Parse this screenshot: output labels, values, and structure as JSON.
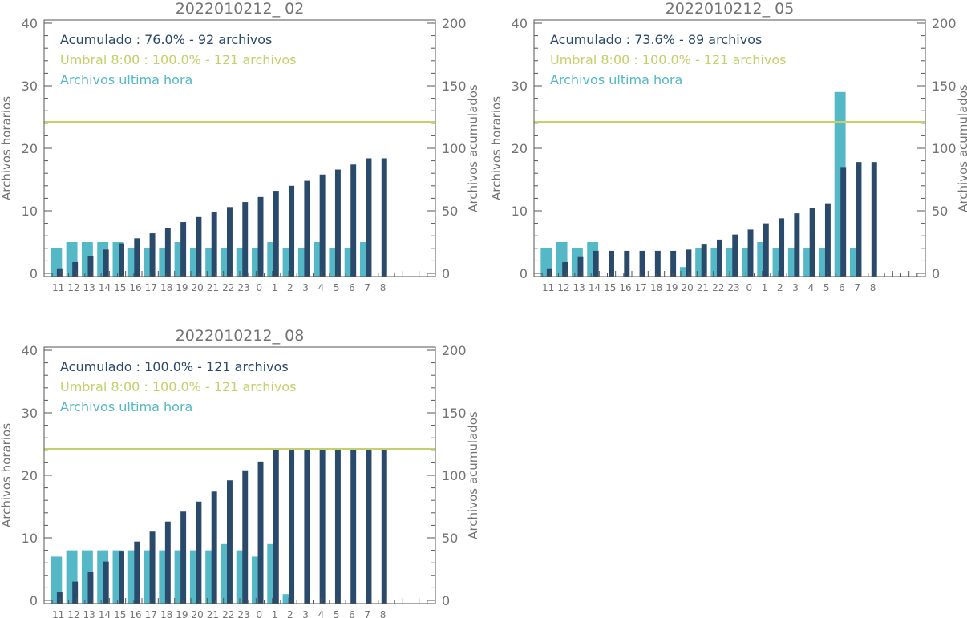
{
  "colors": {
    "accumulated": "#2a4a6b",
    "hourly": "#55b8c6",
    "threshold": "#c5d06a",
    "axis": "#555555",
    "text": "#737373"
  },
  "chart_data": [
    {
      "type": "bar",
      "title": "2022010212_ 02",
      "ylabel_left": "Archivos horarios",
      "ylabel_right": "Archivos acumulados",
      "ylim_left": [
        0,
        40
      ],
      "ylim_right": [
        0,
        200
      ],
      "yticks_left": [
        "0",
        "10",
        "20",
        "30",
        "40"
      ],
      "yticks_right": [
        "0",
        "50",
        "100",
        "150",
        "200"
      ],
      "categories": [
        "11",
        "12",
        "13",
        "14",
        "15",
        "16",
        "17",
        "18",
        "19",
        "20",
        "21",
        "22",
        "23",
        "0",
        "1",
        "2",
        "3",
        "4",
        "5",
        "6",
        "7",
        "8"
      ],
      "legend": [
        {
          "key": "accumulated",
          "text": "Acumulado : 76.0% - 92 archivos"
        },
        {
          "key": "threshold",
          "text": "Umbral 8:00 : 100.0% - 121 archivos"
        },
        {
          "key": "hourly",
          "text": "Archivos ultima hora"
        }
      ],
      "series": [
        {
          "name": "Archivos ultima hora",
          "axis": "left",
          "color_key": "hourly",
          "values": [
            4,
            5,
            5,
            5,
            5,
            4,
            4,
            4,
            5,
            4,
            4,
            4,
            4,
            4,
            5,
            4,
            4,
            5,
            4,
            4,
            5,
            0
          ]
        },
        {
          "name": "Acumulado",
          "axis": "right",
          "color_key": "accumulated",
          "values": [
            4,
            9,
            14,
            19,
            24,
            28,
            32,
            36,
            41,
            45,
            49,
            53,
            57,
            61,
            66,
            70,
            74,
            79,
            83,
            87,
            92,
            92
          ]
        }
      ],
      "threshold": {
        "value": 121,
        "axis": "right",
        "color_key": "threshold"
      }
    },
    {
      "type": "bar",
      "title": "2022010212_ 05",
      "ylabel_left": "Archivos horarios",
      "ylabel_right": "Archivos acumulados",
      "ylim_left": [
        0,
        40
      ],
      "ylim_right": [
        0,
        200
      ],
      "yticks_left": [
        "0",
        "10",
        "20",
        "30",
        "40"
      ],
      "yticks_right": [
        "0",
        "50",
        "100",
        "150",
        "200"
      ],
      "categories": [
        "11",
        "12",
        "13",
        "14",
        "15",
        "16",
        "17",
        "18",
        "19",
        "20",
        "21",
        "22",
        "23",
        "0",
        "1",
        "2",
        "3",
        "4",
        "5",
        "6",
        "7",
        "8"
      ],
      "legend": [
        {
          "key": "accumulated",
          "text": "Acumulado : 73.6% - 89 archivos"
        },
        {
          "key": "threshold",
          "text": "Umbral 8:00 : 100.0% - 121 archivos"
        },
        {
          "key": "hourly",
          "text": "Archivos ultima hora"
        }
      ],
      "series": [
        {
          "name": "Archivos ultima hora",
          "axis": "left",
          "color_key": "hourly",
          "values": [
            4,
            5,
            4,
            5,
            0,
            0,
            0,
            0,
            0,
            1,
            4,
            4,
            4,
            4,
            5,
            4,
            4,
            4,
            4,
            29,
            4,
            0
          ]
        },
        {
          "name": "Acumulado",
          "axis": "right",
          "color_key": "accumulated",
          "values": [
            4,
            9,
            13,
            18,
            18,
            18,
            18,
            18,
            18,
            19,
            23,
            27,
            31,
            35,
            40,
            44,
            48,
            52,
            56,
            85,
            89,
            89
          ]
        }
      ],
      "threshold": {
        "value": 121,
        "axis": "right",
        "color_key": "threshold"
      }
    },
    {
      "type": "bar",
      "title": "2022010212_ 08",
      "ylabel_left": "Archivos horarios",
      "ylabel_right": "Archivos acumulados",
      "ylim_left": [
        0,
        40
      ],
      "ylim_right": [
        0,
        200
      ],
      "yticks_left": [
        "0",
        "10",
        "20",
        "30",
        "40"
      ],
      "yticks_right": [
        "0",
        "50",
        "100",
        "150",
        "200"
      ],
      "categories": [
        "11",
        "12",
        "13",
        "14",
        "15",
        "16",
        "17",
        "18",
        "19",
        "20",
        "21",
        "22",
        "23",
        "0",
        "1",
        "2",
        "3",
        "4",
        "5",
        "6",
        "7",
        "8"
      ],
      "legend": [
        {
          "key": "accumulated",
          "text": "Acumulado : 100.0% - 121 archivos"
        },
        {
          "key": "threshold",
          "text": "Umbral 8:00 : 100.0% - 121 archivos"
        },
        {
          "key": "hourly",
          "text": "Archivos ultima hora"
        }
      ],
      "series": [
        {
          "name": "Archivos ultima hora",
          "axis": "left",
          "color_key": "hourly",
          "values": [
            7,
            8,
            8,
            8,
            8,
            8,
            8,
            8,
            8,
            8,
            8,
            9,
            8,
            7,
            9,
            1,
            0,
            0,
            0,
            0,
            0,
            0
          ]
        },
        {
          "name": "Acumulado",
          "axis": "right",
          "color_key": "accumulated",
          "values": [
            7,
            15,
            23,
            31,
            39,
            47,
            55,
            63,
            71,
            79,
            87,
            96,
            104,
            111,
            120,
            121,
            121,
            121,
            121,
            121,
            121,
            121
          ]
        }
      ],
      "threshold": {
        "value": 121,
        "axis": "right",
        "color_key": "threshold"
      }
    }
  ]
}
